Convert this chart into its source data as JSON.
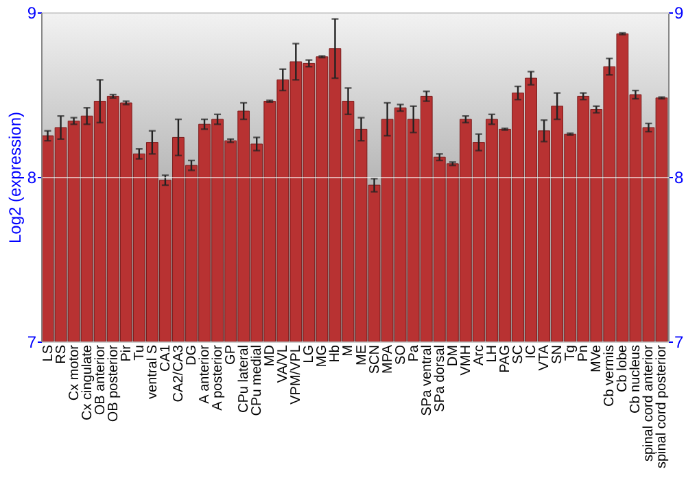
{
  "chart_data": {
    "type": "bar",
    "ylabel": "Log2 (expression)",
    "categories": [
      "LS",
      "RS",
      "Cx motor",
      "Cx cingulate",
      "OB anterior",
      "OB posterior",
      "Pir",
      "Tu",
      "ventral S",
      "CA1",
      "CA2/CA3",
      "DG",
      "A anterior",
      "A posterior",
      "GP",
      "CPu lateral",
      "CPu medial",
      "MD",
      "VA/VL",
      "VPM/VPL",
      "LG",
      "MG",
      "Hb",
      "M",
      "ME",
      "SCN",
      "MPA",
      "SO",
      "Pa",
      "SPa ventral",
      "SPa dorsal",
      "DM",
      "VMH",
      "Arc",
      "LH",
      "PAG",
      "SC",
      "IC",
      "VTA",
      "SN",
      "Tg",
      "Pn",
      "MVe",
      "Cb vermis",
      "Cb lobe",
      "Cb nucleus",
      "spinal cord anterior",
      "spinal cord posterior"
    ],
    "values": [
      8.25,
      8.3,
      8.34,
      8.37,
      8.46,
      8.49,
      8.45,
      8.14,
      8.21,
      7.98,
      8.24,
      8.07,
      8.32,
      8.35,
      8.22,
      8.4,
      8.2,
      8.46,
      8.59,
      8.7,
      8.69,
      8.73,
      8.78,
      8.46,
      8.29,
      7.95,
      8.35,
      8.42,
      8.35,
      8.49,
      8.12,
      8.08,
      8.35,
      8.21,
      8.35,
      8.29,
      8.51,
      8.6,
      8.28,
      8.43,
      8.26,
      8.49,
      8.41,
      8.67,
      8.87,
      8.5,
      8.3,
      8.48
    ],
    "errors": [
      0.03,
      0.07,
      0.02,
      0.05,
      0.13,
      0.01,
      0.01,
      0.03,
      0.07,
      0.03,
      0.11,
      0.03,
      0.03,
      0.03,
      0.01,
      0.05,
      0.04,
      0.005,
      0.065,
      0.11,
      0.02,
      0.005,
      0.18,
      0.08,
      0.07,
      0.04,
      0.1,
      0.02,
      0.08,
      0.03,
      0.02,
      0.01,
      0.02,
      0.05,
      0.03,
      0.005,
      0.04,
      0.04,
      0.065,
      0.08,
      0.005,
      0.02,
      0.02,
      0.05,
      0.005,
      0.025,
      0.025,
      0.005
    ],
    "color": "#b83232",
    "ylim": [
      7,
      9
    ],
    "yticks": [
      7,
      8,
      9
    ],
    "y2lim": [
      7,
      9
    ],
    "y2ticks": [
      7,
      8,
      9
    ],
    "grid": "y"
  }
}
